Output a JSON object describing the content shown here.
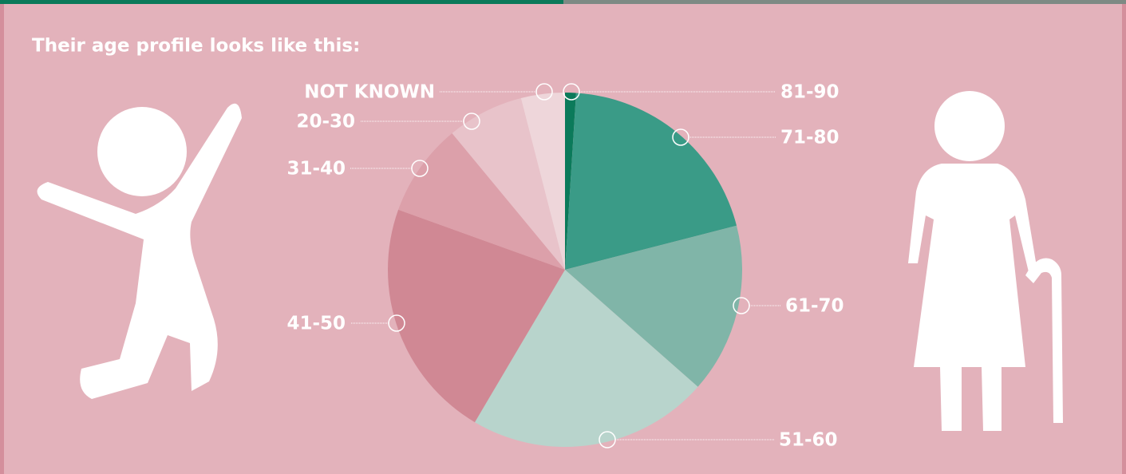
{
  "chart_data": {
    "type": "pie",
    "title": "Their age profile looks like this:",
    "categories": [
      "81-90",
      "71-80",
      "61-70",
      "51-60",
      "41-50",
      "31-40",
      "20-30",
      "NOT KNOWN"
    ],
    "values": [
      1,
      20,
      15.5,
      22,
      22,
      8.5,
      7,
      4
    ],
    "colors": [
      "#0b7a5a",
      "#3a9b87",
      "#80b5a8",
      "#b8d4cc",
      "#d08894",
      "#dca0aa",
      "#e8c3ca",
      "#eed6da"
    ]
  }
}
